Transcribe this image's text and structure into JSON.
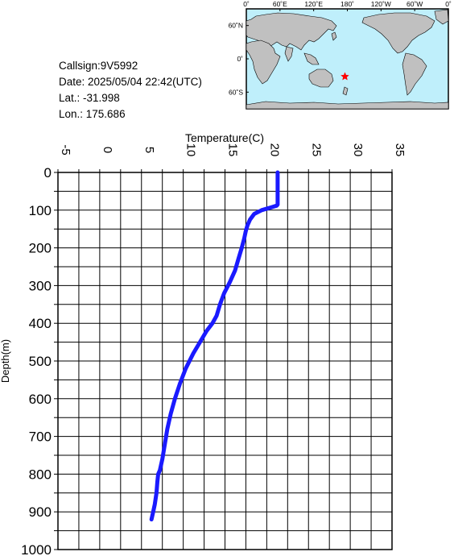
{
  "info": {
    "callsign": "Callsign:9V5992",
    "date": "Date:  2025/05/04 22:42(UTC)",
    "lat": "Lat.:  -31.998",
    "lon": "Lon.:  175.686"
  },
  "map": {
    "lon_labels": [
      "0˚",
      "60˚E",
      "120˚E",
      "180˚",
      "120˚W",
      "60˚W",
      "0˚"
    ],
    "lat_labels": [
      "60˚N",
      "0˚",
      "60˚S"
    ],
    "marker": {
      "lat": -31.998,
      "lon": 175.686
    },
    "colors": {
      "ocean": "#bfeffb",
      "land": "#c0c0c0",
      "marker": "#ff0000"
    }
  },
  "chart_data": {
    "type": "line",
    "xlabel": "Temperature(C)",
    "ylabel": "Depth(m)",
    "xlim": [
      -5,
      35
    ],
    "ylim": [
      0,
      1000
    ],
    "xticks": [
      "-5",
      "0",
      "5",
      "10",
      "15",
      "20",
      "25",
      "30",
      "35"
    ],
    "yticks": [
      "0",
      "100",
      "200",
      "300",
      "400",
      "500",
      "600",
      "700",
      "800",
      "900",
      "1000"
    ],
    "grid": true,
    "line_color": "#1a1aff",
    "series": [
      {
        "x": [
          21.3,
          21.3,
          21.3,
          21.2,
          20.6,
          19.4,
          18.5,
          18.0,
          17.7,
          17.5,
          17.3,
          17.0,
          16.6,
          16.2,
          15.6,
          14.9,
          14.4,
          14.0,
          13.5,
          12.8,
          12.0,
          11.2,
          10.3,
          9.6,
          9.0,
          8.5,
          8.1,
          7.8,
          7.5,
          7.2,
          7.0,
          6.9,
          6.8,
          6.6,
          6.4,
          6.2
        ],
        "y": [
          0,
          50,
          85,
          88,
          92,
          100,
          110,
          125,
          140,
          155,
          175,
          200,
          230,
          260,
          290,
          320,
          350,
          380,
          400,
          420,
          450,
          480,
          520,
          560,
          600,
          640,
          680,
          720,
          760,
          790,
          800,
          820,
          850,
          880,
          900,
          920
        ]
      }
    ]
  }
}
